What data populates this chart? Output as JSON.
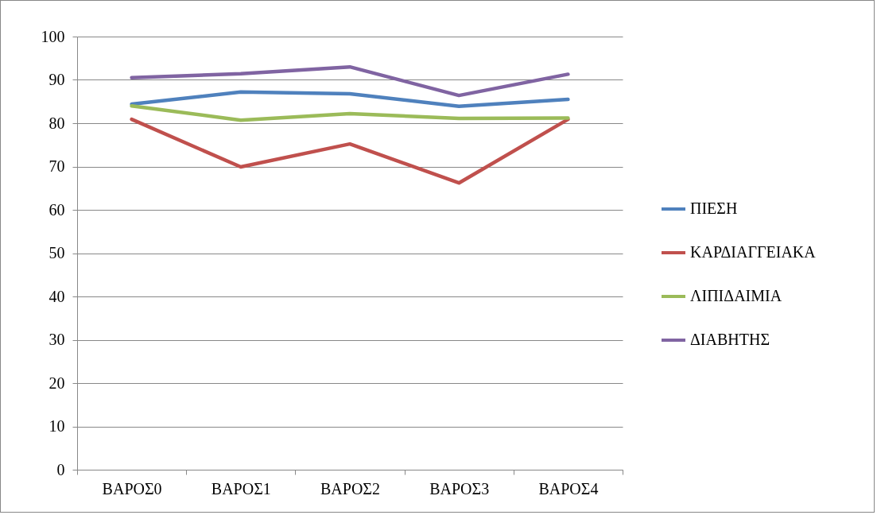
{
  "chart_data": {
    "type": "line",
    "categories": [
      "ΒΑΡΟΣ0",
      "ΒΑΡΟΣ1",
      "ΒΑΡΟΣ2",
      "ΒΑΡΟΣ3",
      "ΒΑΡΟΣ4"
    ],
    "series": [
      {
        "name": "ΠΙΕΣΗ",
        "color": "#4f81bd",
        "values": [
          84.4,
          87.2,
          86.8,
          83.9,
          85.5
        ]
      },
      {
        "name": "ΚΑΡΔΙΑΓΓΕΙΑΚΑ",
        "color": "#c0504d",
        "values": [
          80.9,
          69.9,
          75.2,
          66.2,
          80.9
        ]
      },
      {
        "name": "ΛΙΠΙΔΑΙΜΙΑ",
        "color": "#9bbb59",
        "values": [
          84.0,
          80.7,
          82.2,
          81.1,
          81.2
        ]
      },
      {
        "name": "ΔΙΑΒΗΤΗΣ",
        "color": "#8064a2",
        "values": [
          90.5,
          91.4,
          93.0,
          86.4,
          91.3
        ]
      }
    ],
    "ylim": [
      0,
      100
    ],
    "yticks": [
      0,
      10,
      20,
      30,
      40,
      50,
      60,
      70,
      80,
      90,
      100
    ],
    "grid": "y",
    "legend": "right",
    "marker": "none",
    "line_style": "solid"
  }
}
